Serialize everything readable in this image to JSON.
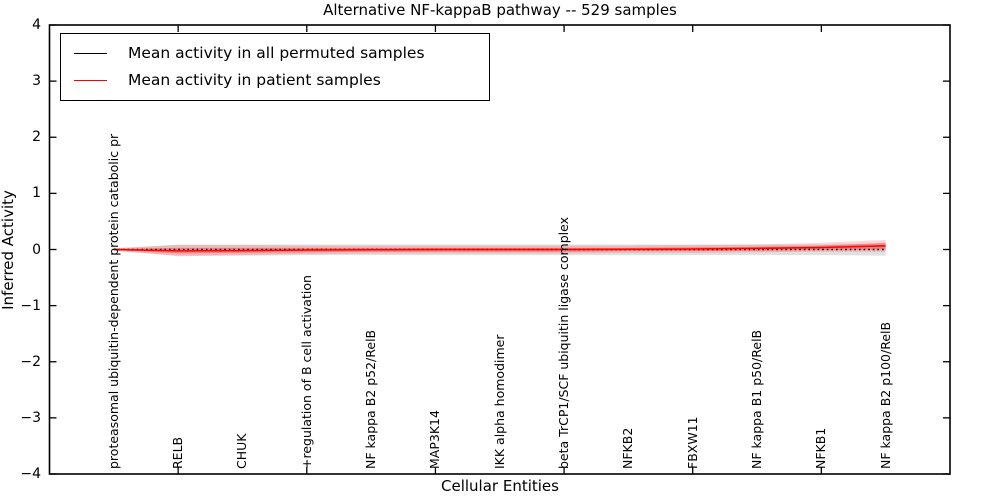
{
  "chart_data": {
    "type": "line",
    "title": "Alternative NF-kappaB pathway -- 529 samples",
    "xlabel": "Cellular Entities",
    "ylabel": "Inferred Activity",
    "xlim": [
      0,
      14
    ],
    "ylim": [
      -4,
      4
    ],
    "grid": false,
    "legend_position": "upper left",
    "yticks": [
      4,
      3,
      2,
      1,
      0,
      -1,
      -2,
      -3,
      -4
    ],
    "ytick_labels": [
      "4",
      "3",
      "2",
      "1",
      "0",
      "−1",
      "−2",
      "−3",
      "−4"
    ],
    "xticks_unlabeled": [
      2,
      4,
      6,
      8,
      10,
      12
    ],
    "x": [
      1,
      2,
      3,
      4,
      5,
      6,
      7,
      8,
      9,
      10,
      11,
      12,
      13
    ],
    "categories": [
      "proteasomal ubiquitin-dependent protein catabolic pr",
      "RELB",
      "CHUK",
      "+regulation of B cell activation",
      "NF kappa B2 p52/RelB",
      "MAP3K14",
      "IKK alpha homodimer",
      "beta TrCP1/SCF ubiquitin ligase complex",
      "NFKB2",
      "FBXW11",
      "NF kappa B1 p50/RelB",
      "NFKB1",
      "NF kappa B2 p100/RelB"
    ],
    "series": [
      {
        "name": "Mean activity in all permuted samples",
        "color": "#000000",
        "linestyle": "dotted",
        "values": [
          0,
          0,
          0,
          0,
          0,
          0,
          0,
          0,
          0,
          0,
          0,
          0,
          0
        ],
        "bands": [
          {
            "color": "rgba(0,0,0,0.12)",
            "upper": [
              0.02,
              0.09,
              0.09,
              0.09,
              0.09,
              0.09,
              0.09,
              0.09,
              0.09,
              0.09,
              0.09,
              0.09,
              0.1
            ],
            "lower": [
              -0.02,
              -0.11,
              -0.11,
              -0.1,
              -0.1,
              -0.1,
              -0.1,
              -0.1,
              -0.1,
              -0.1,
              -0.1,
              -0.1,
              -0.11
            ]
          }
        ]
      },
      {
        "name": "Mean activity in patient samples",
        "color": "#ff0000",
        "linestyle": "solid",
        "values": [
          0.0,
          -0.025,
          -0.02,
          -0.01,
          -0.005,
          0.0,
          0.0,
          0.0,
          0.005,
          0.01,
          0.02,
          0.035,
          0.065
        ],
        "bands": [
          {
            "color": "rgba(255,0,0,0.16)",
            "upper": [
              0.02,
              0.08,
              0.08,
              0.07,
              0.07,
              0.07,
              0.07,
              0.07,
              0.07,
              0.08,
              0.09,
              0.12,
              0.17
            ],
            "lower": [
              -0.02,
              -0.12,
              -0.1,
              -0.08,
              -0.07,
              -0.07,
              -0.07,
              -0.07,
              -0.06,
              -0.06,
              -0.05,
              -0.04,
              -0.04
            ]
          },
          {
            "color": "rgba(255,0,0,0.30)",
            "upper": [
              0.01,
              0.03,
              0.03,
              0.03,
              0.03,
              0.03,
              0.03,
              0.03,
              0.03,
              0.04,
              0.05,
              0.07,
              0.12
            ],
            "lower": [
              -0.01,
              -0.07,
              -0.06,
              -0.05,
              -0.04,
              -0.04,
              -0.04,
              -0.04,
              -0.03,
              -0.03,
              -0.02,
              -0.01,
              0.0
            ]
          }
        ]
      }
    ]
  }
}
